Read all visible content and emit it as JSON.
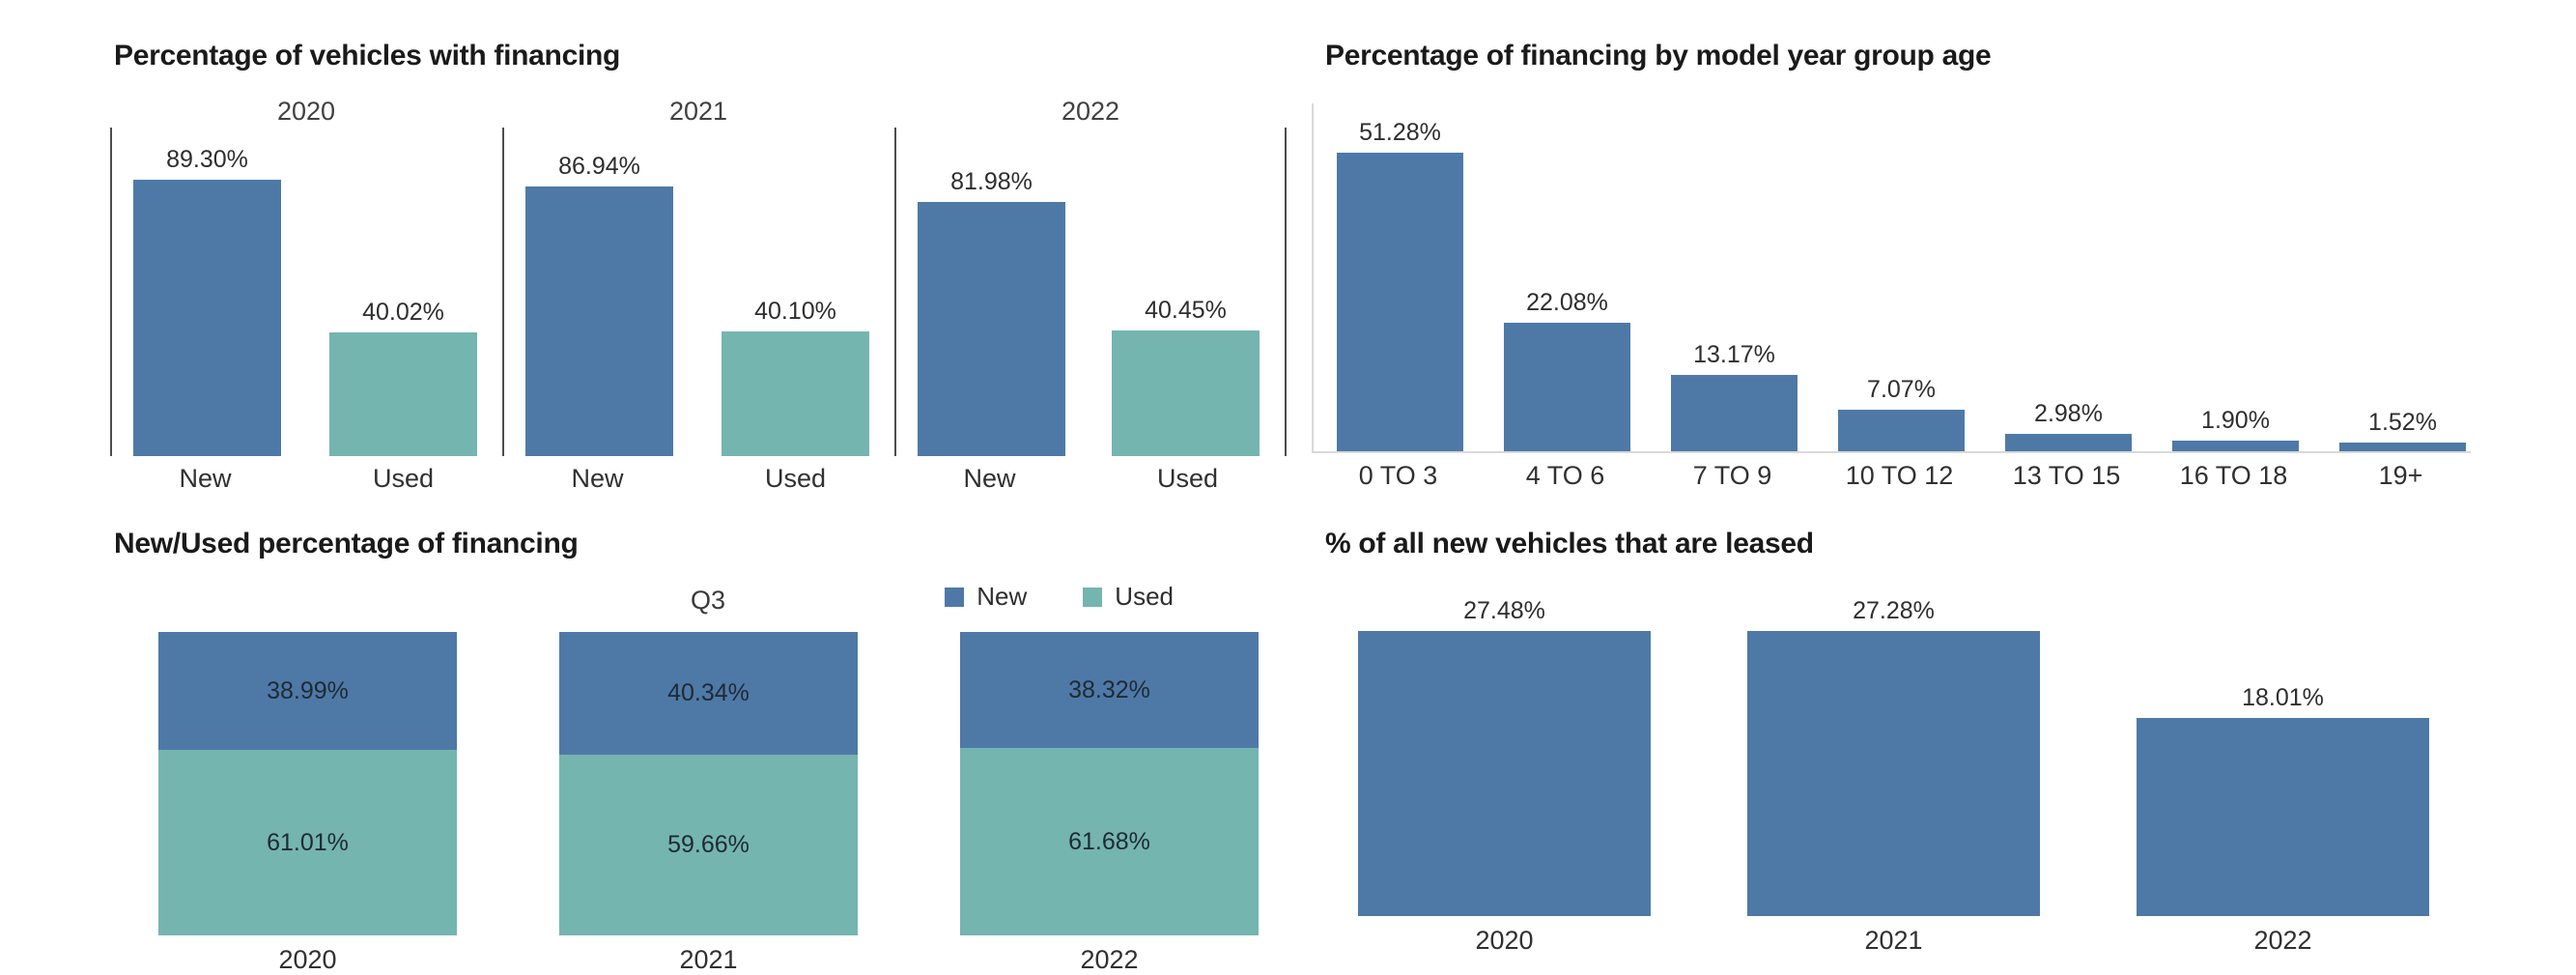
{
  "colors": {
    "new_blue": "#4e79a7",
    "used_teal": "#74b5b0",
    "axis_dark": "#4d4d4d",
    "axis_light": "#d9d9d9"
  },
  "chart_data": [
    {
      "id": "vehicles-with-financing",
      "type": "bar",
      "title": "Percentage of vehicles with financing",
      "groups": [
        "2020",
        "2021",
        "2022"
      ],
      "categories": [
        "New",
        "Used"
      ],
      "series": [
        {
          "group": "2020",
          "values": [
            89.3,
            40.02
          ],
          "labels": [
            "89.30%",
            "40.02%"
          ]
        },
        {
          "group": "2021",
          "values": [
            86.94,
            40.1
          ],
          "labels": [
            "86.94%",
            "40.10%"
          ]
        },
        {
          "group": "2022",
          "values": [
            81.98,
            40.45
          ],
          "labels": [
            "81.98%",
            "40.45%"
          ]
        }
      ],
      "bar_colors_by_category": [
        "new_blue",
        "used_teal"
      ],
      "ylim": [
        0,
        106
      ],
      "grid": false,
      "legend_position": "none"
    },
    {
      "id": "financing-by-model-year-group-age",
      "type": "bar",
      "title": "Percentage of financing by model year group age",
      "categories": [
        "0 TO 3",
        "4 TO 6",
        "7 TO 9",
        "10 TO 12",
        "13 TO 15",
        "16 TO 18",
        "19+"
      ],
      "values": [
        51.28,
        22.08,
        13.17,
        7.07,
        2.98,
        1.9,
        1.52
      ],
      "labels": [
        "51.28%",
        "22.08%",
        "13.17%",
        "7.07%",
        "2.98%",
        "1.90%",
        "1.52%"
      ],
      "bar_color": "new_blue",
      "ylim": [
        0,
        60
      ],
      "grid": false,
      "legend_position": "none"
    },
    {
      "id": "new-used-percentage-of-financing",
      "type": "stacked-bar",
      "title": "New/Used percentage of financing",
      "column_header": "Q3",
      "categories": [
        "2020",
        "2021",
        "2022"
      ],
      "series": [
        {
          "name": "New",
          "color_key": "new_blue",
          "values": [
            38.99,
            40.34,
            38.32
          ],
          "labels": [
            "38.99%",
            "40.34%",
            "38.32%"
          ]
        },
        {
          "name": "Used",
          "color_key": "used_teal",
          "values": [
            61.01,
            59.66,
            61.68
          ],
          "labels": [
            "61.01%",
            "59.66%",
            "61.68%"
          ]
        }
      ],
      "legend": [
        {
          "label": "New",
          "color_key": "new_blue"
        },
        {
          "label": "Used",
          "color_key": "used_teal"
        }
      ],
      "legend_position": "top-right",
      "ylim": [
        0,
        100
      ],
      "grid": false
    },
    {
      "id": "new-vehicles-leased",
      "type": "bar",
      "title": "% of all new vehicles that are leased",
      "categories": [
        "2020",
        "2021",
        "2022"
      ],
      "values": [
        27.48,
        27.28,
        18.01
      ],
      "labels": [
        "27.48%",
        "27.28%",
        "18.01%"
      ],
      "bar_color": "new_blue",
      "ylim": [
        0,
        29
      ],
      "grid": false,
      "legend_position": "none"
    }
  ]
}
